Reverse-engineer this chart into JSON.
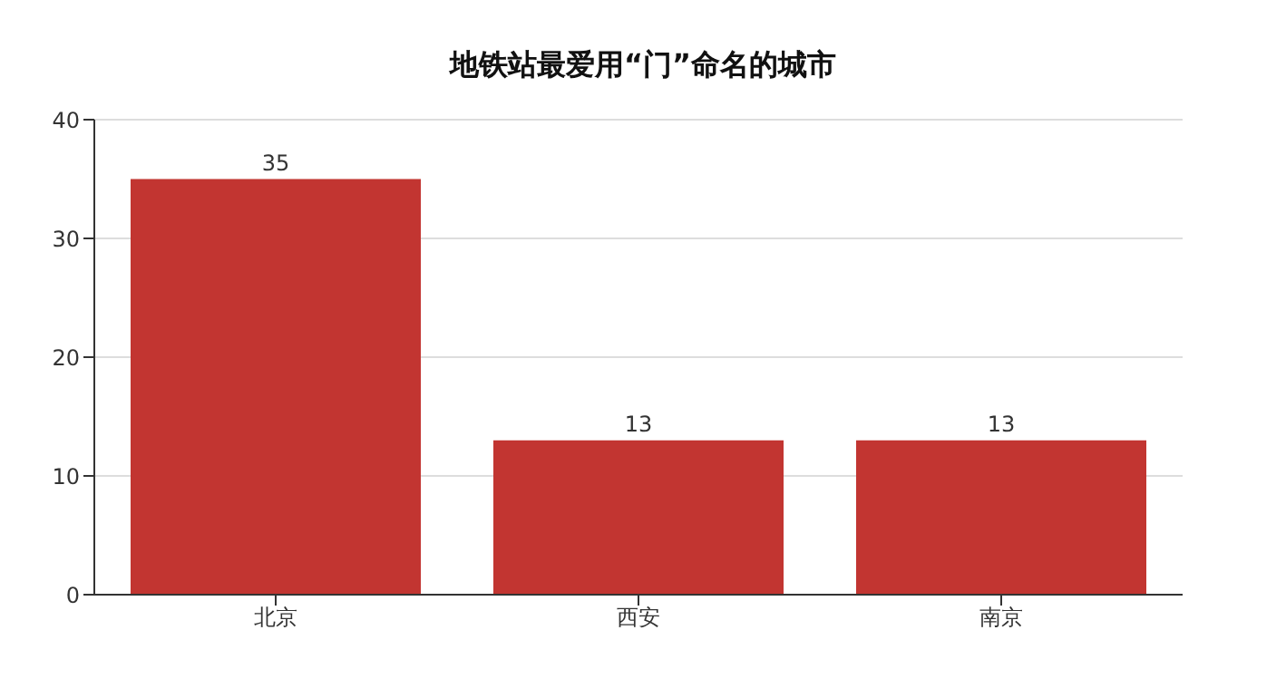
{
  "chart_data": {
    "type": "bar",
    "title": "地铁站最爱用“门”命名的城市",
    "categories": [
      "北京",
      "西安",
      "南京"
    ],
    "values": [
      35,
      13,
      13
    ],
    "color": "#c23531",
    "ylim": [
      0,
      40
    ],
    "yticks": [
      0,
      10,
      20,
      30,
      40
    ],
    "grid": "y",
    "data_labels": true
  }
}
